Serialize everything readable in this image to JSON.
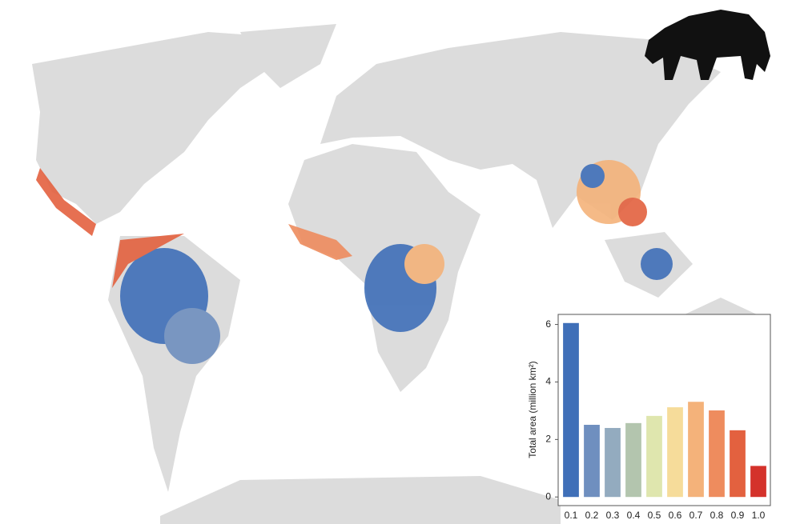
{
  "chart_data": {
    "type": "bar",
    "y_label": "Total area (million km²)",
    "categories": [
      "0.1",
      "0.2",
      "0.3",
      "0.4",
      "0.5",
      "0.6",
      "0.7",
      "0.8",
      "0.9",
      "1.0"
    ],
    "values": [
      6.05,
      2.51,
      2.4,
      2.57,
      2.82,
      3.12,
      3.31,
      3.01,
      2.32,
      1.08
    ],
    "colors": [
      "#3f6fb8",
      "#6f8fbf",
      "#93abbf",
      "#b3c5ae",
      "#dfe6ae",
      "#f6dc9a",
      "#f4b27a",
      "#ee8c5e",
      "#e3613f",
      "#d4322b"
    ],
    "ylim": [
      -0.3,
      6.35
    ],
    "yticks": [
      0,
      2,
      4,
      6
    ],
    "grid": false
  }
}
